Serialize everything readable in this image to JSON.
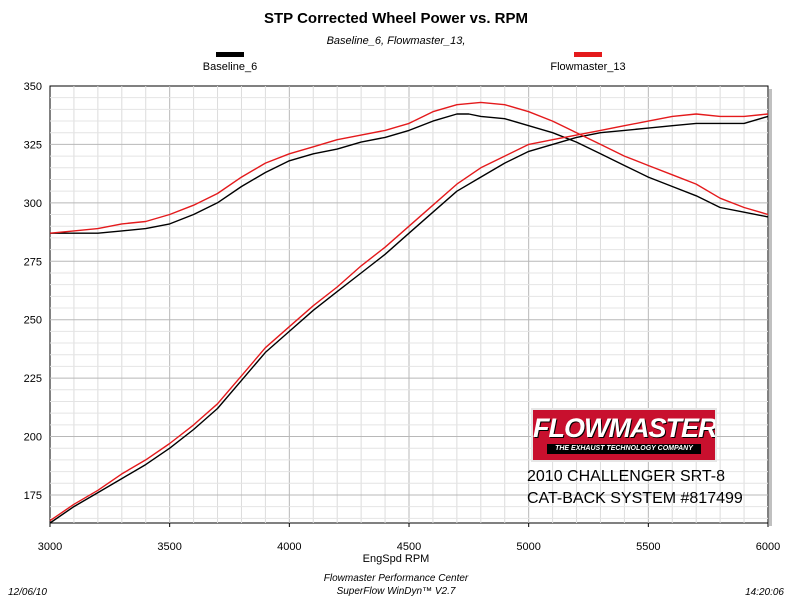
{
  "chart_data": {
    "type": "line",
    "title": "STP Corrected Wheel Power vs. RPM",
    "subtitle": "Baseline_6, Flowmaster_13,",
    "xlabel": "EngSpd  RPM",
    "ylabel": "",
    "xlim": [
      3000,
      6000
    ],
    "ylim": [
      163,
      350
    ],
    "xticks": [
      3000,
      3500,
      4000,
      4500,
      5000,
      5500,
      6000
    ],
    "yticks": [
      175,
      200,
      225,
      250,
      275,
      300,
      325,
      350
    ],
    "grid": true,
    "legend_position": "top",
    "series": [
      {
        "name": "Baseline_6",
        "color": "#000000",
        "curves": [
          {
            "label": "torque",
            "x": [
              3000,
              3100,
              3200,
              3300,
              3400,
              3500,
              3600,
              3700,
              3800,
              3900,
              4000,
              4100,
              4200,
              4300,
              4400,
              4500,
              4600,
              4700,
              4750,
              4800,
              4900,
              5000,
              5100,
              5200,
              5300,
              5400,
              5500,
              5600,
              5700,
              5800,
              5900,
              6000
            ],
            "y": [
              287,
              287,
              287,
              288,
              289,
              291,
              295,
              300,
              307,
              313,
              318,
              321,
              323,
              326,
              328,
              331,
              335,
              338,
              338,
              337,
              336,
              333,
              330,
              326,
              321,
              316,
              311,
              307,
              303,
              298,
              296,
              294
            ]
          },
          {
            "label": "power",
            "x": [
              3000,
              3100,
              3200,
              3300,
              3400,
              3500,
              3600,
              3700,
              3800,
              3900,
              4000,
              4100,
              4200,
              4300,
              4400,
              4500,
              4600,
              4700,
              4800,
              4900,
              5000,
              5100,
              5200,
              5300,
              5400,
              5500,
              5600,
              5700,
              5800,
              5900,
              6000
            ],
            "y": [
              163,
              170,
              176,
              182,
              188,
              195,
              203,
              212,
              224,
              236,
              245,
              254,
              262,
              270,
              278,
              287,
              296,
              305,
              311,
              317,
              322,
              325,
              328,
              330,
              331,
              332,
              333,
              334,
              334,
              334,
              337
            ]
          }
        ]
      },
      {
        "name": "Flowmaster_13",
        "color": "#e41a1c",
        "curves": [
          {
            "label": "torque",
            "x": [
              3000,
              3100,
              3200,
              3300,
              3400,
              3500,
              3600,
              3700,
              3800,
              3900,
              4000,
              4100,
              4200,
              4300,
              4400,
              4500,
              4600,
              4700,
              4800,
              4900,
              5000,
              5100,
              5200,
              5300,
              5400,
              5500,
              5600,
              5700,
              5800,
              5900,
              6000
            ],
            "y": [
              287,
              288,
              289,
              291,
              292,
              295,
              299,
              304,
              311,
              317,
              321,
              324,
              327,
              329,
              331,
              334,
              339,
              342,
              343,
              342,
              339,
              335,
              330,
              325,
              320,
              316,
              312,
              308,
              302,
              298,
              295
            ]
          },
          {
            "label": "power",
            "x": [
              3000,
              3100,
              3200,
              3300,
              3400,
              3500,
              3600,
              3700,
              3800,
              3900,
              4000,
              4100,
              4200,
              4300,
              4400,
              4500,
              4600,
              4700,
              4800,
              4900,
              5000,
              5100,
              5200,
              5300,
              5400,
              5500,
              5600,
              5700,
              5800,
              5900,
              6000
            ],
            "y": [
              164,
              171,
              177,
              184,
              190,
              197,
              205,
              214,
              226,
              238,
              247,
              256,
              264,
              273,
              281,
              290,
              299,
              308,
              315,
              320,
              325,
              327,
              329,
              331,
              333,
              335,
              337,
              338,
              337,
              337,
              338
            ]
          }
        ]
      }
    ]
  },
  "legend": {
    "baseline_label": "Baseline_6",
    "flowmaster_label": "Flowmaster_13",
    "baseline_color": "#000000",
    "flowmaster_color": "#e41a1c"
  },
  "logo": {
    "word": "FLOWMASTER",
    "tagline": "THE EXHAUST TECHNOLOGY COMPANY"
  },
  "note": {
    "line1": "2010 CHALLENGER SRT-8",
    "line2": "CAT-BACK SYSTEM #817499"
  },
  "footer": {
    "date": "12/06/10",
    "time": "14:20:06",
    "center_line1": "Flowmaster Performance Center",
    "center_line2": "SuperFlow WinDyn™ V2.7"
  }
}
